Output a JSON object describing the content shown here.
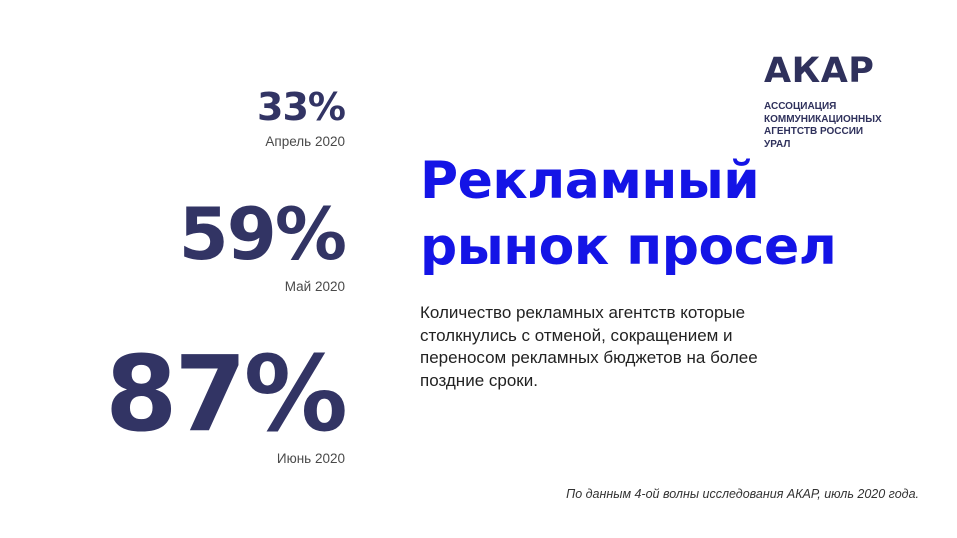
{
  "stats": [
    {
      "value": "33%",
      "period": "Апрель 2020"
    },
    {
      "value": "59%",
      "period": "Май 2020"
    },
    {
      "value": "87%",
      "period": "Июнь 2020"
    }
  ],
  "logo": {
    "brand": "АКАР",
    "lines": [
      "АССОЦИАЦИЯ",
      "КОММУНИКАЦИОННЫХ",
      "АГЕНТСТВ РОССИИ",
      "УРАЛ"
    ]
  },
  "headline": {
    "line1": "Рекламный",
    "line2": "рынок просел"
  },
  "description": "Количество рекламных агентств которые столкнулись с отменой, сокращением и переносом рекламных бюджетов на более поздние сроки.",
  "source": "По данным 4-ой волны исследования АКАР, июль 2020 года.",
  "colors": {
    "stat_color": "#323464",
    "headline_color": "#1414e6",
    "logo_color": "#2f315c"
  }
}
